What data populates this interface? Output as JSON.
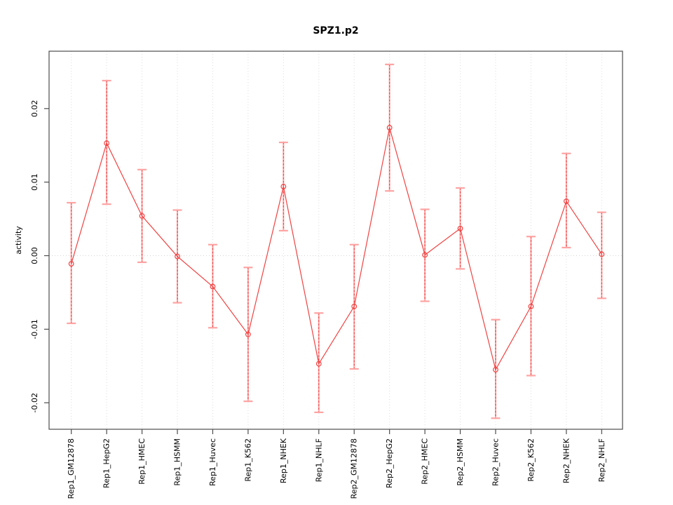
{
  "title": "SPZ1.p2",
  "chart_data": {
    "type": "line",
    "subtype": "points-with-error-bars",
    "title": "SPZ1.p2",
    "xlabel": "",
    "ylabel": "activity",
    "categories": [
      "Rep1_GM12878",
      "Rep1_HepG2",
      "Rep1_HMEC",
      "Rep1_HSMM",
      "Rep1_Huvec",
      "Rep1_K562",
      "Rep1_NHEK",
      "Rep1_NHLF",
      "Rep2_GM12878",
      "Rep2_HepG2",
      "Rep2_HMEC",
      "Rep2_HSMM",
      "Rep2_Huvec",
      "Rep2_K562",
      "Rep2_NHEK",
      "Rep2_NHLF"
    ],
    "series": [
      {
        "name": "activity",
        "values": [
          -0.0011,
          0.0153,
          0.0054,
          -0.0001,
          -0.0042,
          -0.0107,
          0.0094,
          -0.0147,
          -0.0069,
          0.0174,
          0.0001,
          0.0037,
          -0.0155,
          -0.0069,
          0.0074,
          0.0002
        ],
        "lower": [
          -0.0092,
          0.007,
          -0.0009,
          -0.0064,
          -0.0098,
          -0.0198,
          0.0034,
          -0.0213,
          -0.0154,
          0.0088,
          -0.0062,
          -0.0018,
          -0.0221,
          -0.0163,
          0.0011,
          -0.0058
        ],
        "upper": [
          0.0072,
          0.0238,
          0.0117,
          0.0062,
          0.0015,
          -0.0016,
          0.0154,
          -0.0078,
          0.0015,
          0.026,
          0.0063,
          0.0092,
          -0.0087,
          0.0026,
          0.0139,
          0.0059
        ]
      }
    ],
    "ylim": [
      -0.0236,
      0.0278
    ],
    "yticks": [
      -0.02,
      -0.01,
      0,
      0.01,
      0.02
    ],
    "ytick_labels": [
      "-0.02",
      "-0.01",
      "0.00",
      "0.01",
      "0.02"
    ],
    "grid": {
      "vertical": "dotted",
      "horizontal": "none",
      "zero_line": true
    },
    "legend": "none",
    "colors": {
      "line": "#ef4343",
      "point_stroke": "#ef4343",
      "bar_fill": "#ffa3a3",
      "bar_dash": "#e23b3b",
      "grid": "#dcdcdc",
      "zero_line": "#d4d4d4",
      "axis_box": "#4d4d4d",
      "tick": "#4d4d4d",
      "text": "#000000"
    }
  }
}
